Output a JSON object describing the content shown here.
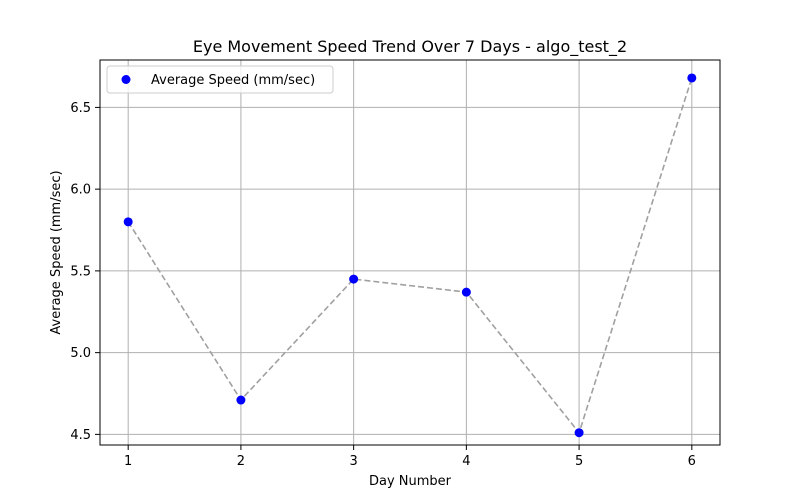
{
  "chart_data": {
    "type": "scatter",
    "title": "Eye Movement Speed Trend Over 7 Days - algo_test_2",
    "xlabel": "Day Number",
    "ylabel": "Average Speed (mm/sec)",
    "x": [
      1,
      2,
      3,
      4,
      5,
      6
    ],
    "series": [
      {
        "name": "Average Speed (mm/sec)",
        "values": [
          5.8,
          4.71,
          5.45,
          5.37,
          4.51,
          6.68
        ],
        "marker_color": "#0000ff",
        "line_color": "#a0a0a0",
        "line_style": "dashed"
      }
    ],
    "xlim": [
      0.75,
      6.25
    ],
    "ylim": [
      4.435,
      6.79
    ],
    "xticks": [
      1,
      2,
      3,
      4,
      5,
      6
    ],
    "xtick_labels": [
      "1",
      "2",
      "3",
      "4",
      "5",
      "6"
    ],
    "yticks": [
      4.5,
      5.0,
      5.5,
      6.0,
      6.5
    ],
    "ytick_labels": [
      "4.5",
      "5.0",
      "5.5",
      "6.0",
      "6.5"
    ],
    "grid": true,
    "legend_position": "top-left"
  }
}
